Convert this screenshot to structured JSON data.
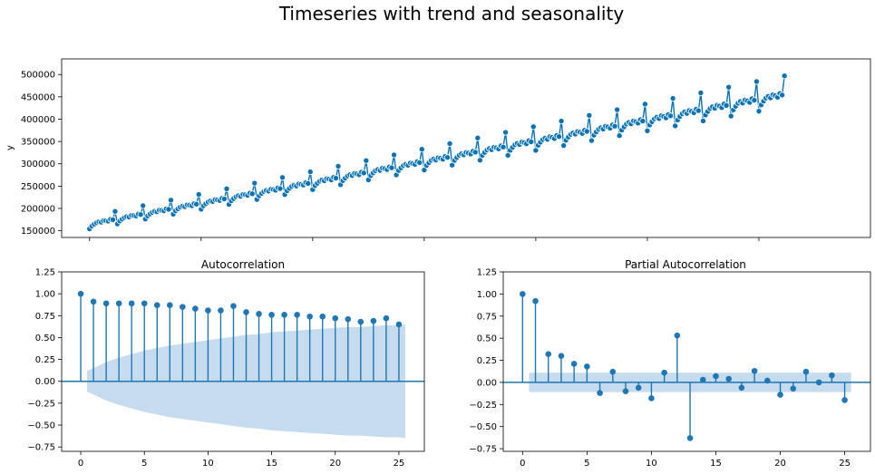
{
  "figure": {
    "title": "Timeseries with trend and seasonality",
    "colors": {
      "series": "#1f77b4",
      "ts_line": "#0872b2",
      "ts_marker": "#0872b2",
      "conf_band": "#c6dbed"
    }
  },
  "chart_data": [
    {
      "type": "line",
      "title": "",
      "xlabel": "",
      "ylabel": "y",
      "ylim": [
        135000,
        535000
      ],
      "xlim": [
        -12,
        336
      ],
      "yticks": [
        150000,
        200000,
        250000,
        300000,
        350000,
        400000,
        450000,
        500000
      ],
      "ytick_labels": [
        "150000",
        "200000",
        "250000",
        "300000",
        "350000",
        "400000",
        "450000",
        "500000"
      ],
      "xticks": [
        0,
        48,
        96,
        144,
        192,
        240,
        288
      ],
      "xtick_labels": [],
      "grid": false,
      "markers": true,
      "trend": {
        "start": 165000,
        "end": 455000,
        "n": 300
      },
      "seasonal_pattern": [
        -18000,
        -9000,
        -4000,
        0,
        2000,
        -1000,
        3000,
        1000,
        -2000,
        3000,
        0,
        28000
      ]
    },
    {
      "type": "stem",
      "title": "Autocorrelation",
      "lags": [
        0,
        1,
        2,
        3,
        4,
        5,
        6,
        7,
        8,
        9,
        10,
        11,
        12,
        13,
        14,
        15,
        16,
        17,
        18,
        19,
        20,
        21,
        22,
        23,
        24,
        25
      ],
      "values": [
        1.0,
        0.91,
        0.89,
        0.89,
        0.89,
        0.89,
        0.87,
        0.87,
        0.85,
        0.83,
        0.81,
        0.81,
        0.86,
        0.79,
        0.77,
        0.76,
        0.76,
        0.76,
        0.74,
        0.74,
        0.72,
        0.71,
        0.68,
        0.69,
        0.72,
        0.65
      ],
      "confidence_band": {
        "lags": [
          0.5,
          1,
          2,
          3,
          4,
          5,
          6,
          7,
          8,
          9,
          10,
          11,
          12,
          13,
          14,
          15,
          16,
          17,
          18,
          19,
          20,
          21,
          22,
          23,
          24,
          25,
          25.5
        ],
        "upper": [
          0.12,
          0.15,
          0.22,
          0.27,
          0.31,
          0.35,
          0.38,
          0.41,
          0.43,
          0.45,
          0.47,
          0.49,
          0.51,
          0.53,
          0.54,
          0.56,
          0.57,
          0.58,
          0.59,
          0.6,
          0.61,
          0.62,
          0.62,
          0.63,
          0.64,
          0.64,
          0.65
        ]
      },
      "xlim": [
        -1.5,
        27
      ],
      "ylim": [
        -0.8,
        1.25
      ],
      "xticks": [
        0,
        5,
        10,
        15,
        20,
        25
      ],
      "xtick_labels": [
        "0",
        "5",
        "10",
        "15",
        "20",
        "25"
      ],
      "yticks": [
        -0.75,
        -0.5,
        -0.25,
        0.0,
        0.25,
        0.5,
        0.75,
        1.0,
        1.25
      ],
      "ytick_labels": [
        "−0.75",
        "−0.50",
        "−0.25",
        "0.00",
        "0.25",
        "0.50",
        "0.75",
        "1.00",
        "1.25"
      ]
    },
    {
      "type": "stem",
      "title": "Partial Autocorrelation",
      "lags": [
        0,
        1,
        2,
        3,
        4,
        5,
        6,
        7,
        8,
        9,
        10,
        11,
        12,
        13,
        14,
        15,
        16,
        17,
        18,
        19,
        20,
        21,
        22,
        23,
        24,
        25
      ],
      "values": [
        1.0,
        0.92,
        0.32,
        0.3,
        0.21,
        0.18,
        -0.12,
        0.12,
        -0.1,
        -0.06,
        -0.18,
        0.11,
        0.53,
        -0.63,
        0.03,
        0.07,
        0.04,
        -0.06,
        0.13,
        0.02,
        -0.14,
        -0.07,
        0.12,
        0.0,
        0.08,
        -0.2
      ],
      "confidence_band": {
        "lags": [
          0.5,
          25.5
        ],
        "upper": [
          0.11,
          0.11
        ]
      },
      "xlim": [
        -1.5,
        27
      ],
      "ylim": [
        -0.78,
        1.25
      ],
      "xticks": [
        0,
        5,
        10,
        15,
        20,
        25
      ],
      "xtick_labels": [
        "0",
        "5",
        "10",
        "15",
        "20",
        "25"
      ],
      "yticks": [
        -0.75,
        -0.5,
        -0.25,
        0.0,
        0.25,
        0.5,
        0.75,
        1.0,
        1.25
      ],
      "ytick_labels": [
        "−0.75",
        "−0.50",
        "−0.25",
        "0.00",
        "0.25",
        "0.50",
        "0.75",
        "1.00",
        "1.25"
      ]
    }
  ]
}
